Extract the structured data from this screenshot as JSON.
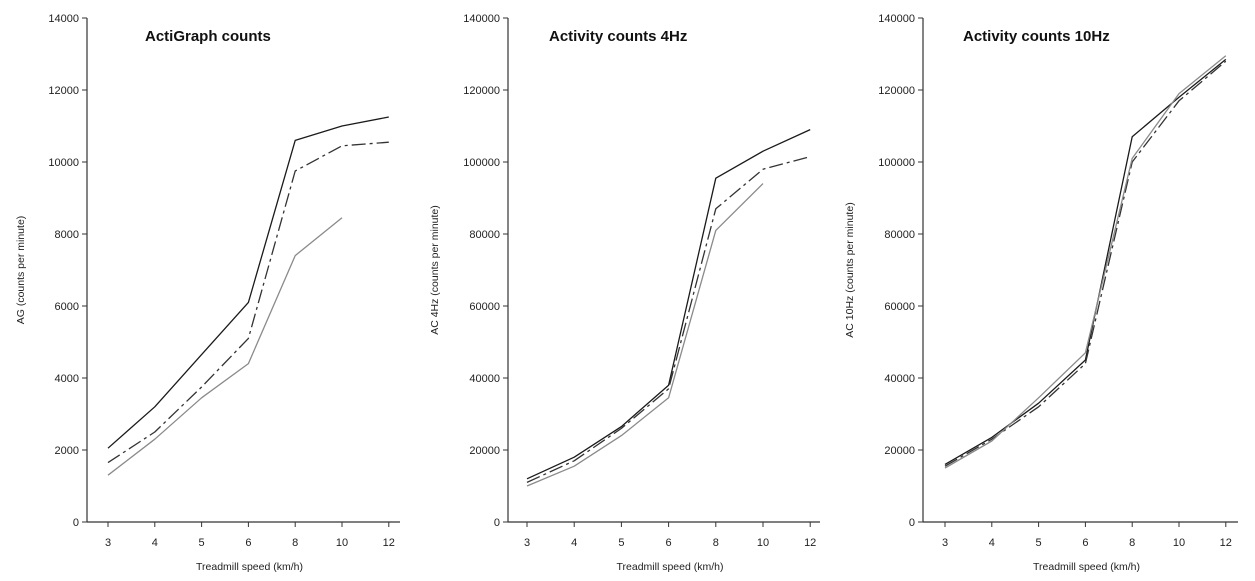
{
  "chart_data": [
    {
      "type": "line",
      "title": "ActiGraph counts",
      "xlabel": "Treadmill speed (km/h)",
      "ylabel": "AG (counts per minute)",
      "ylim": [
        0,
        14000
      ],
      "yticks": [
        0,
        2000,
        4000,
        6000,
        8000,
        10000,
        12000,
        14000
      ],
      "xticks": [
        3,
        4,
        5,
        6,
        8,
        10,
        12
      ],
      "grid": false,
      "legend": "none",
      "series": [
        {
          "style": "solid",
          "color": "#1a1a1a",
          "x": [
            3,
            4,
            5,
            6,
            8,
            10,
            12
          ],
          "y": [
            2050,
            3200,
            4650,
            6100,
            10600,
            11000,
            11250
          ]
        },
        {
          "style": "dashed",
          "color": "#333333",
          "x": [
            3,
            4,
            5,
            6,
            8,
            10,
            12
          ],
          "y": [
            1650,
            2500,
            3750,
            5100,
            9750,
            10450,
            10550
          ]
        },
        {
          "style": "solid",
          "color": "#8a8a8a",
          "x": [
            3,
            4,
            5,
            6,
            8,
            10
          ],
          "y": [
            1300,
            2300,
            3450,
            4400,
            7400,
            8450
          ]
        }
      ]
    },
    {
      "type": "line",
      "title": "Activity counts 4Hz",
      "xlabel": "Treadmill speed (km/h)",
      "ylabel": "AC 4Hz (counts per minute)",
      "ylim": [
        0,
        140000
      ],
      "yticks": [
        0,
        20000,
        40000,
        60000,
        80000,
        100000,
        120000,
        140000
      ],
      "xticks": [
        3,
        4,
        5,
        6,
        8,
        10,
        12
      ],
      "grid": false,
      "legend": "none",
      "series": [
        {
          "style": "solid",
          "color": "#1a1a1a",
          "x": [
            3,
            4,
            5,
            6,
            8,
            10,
            12
          ],
          "y": [
            12000,
            18000,
            26500,
            38000,
            95500,
            103000,
            109000
          ]
        },
        {
          "style": "dashed",
          "color": "#333333",
          "x": [
            3,
            4,
            5,
            6,
            8,
            10,
            12
          ],
          "y": [
            11000,
            17000,
            26000,
            37000,
            87000,
            98000,
            101500
          ]
        },
        {
          "style": "solid",
          "color": "#8a8a8a",
          "x": [
            3,
            4,
            5,
            6,
            8,
            10
          ],
          "y": [
            10000,
            15500,
            24000,
            34500,
            81000,
            94000
          ]
        }
      ]
    },
    {
      "type": "line",
      "title": "Activity counts 10Hz",
      "xlabel": "Treadmill speed (km/h)",
      "ylabel": "AC 10Hz (counts per minute)",
      "ylim": [
        0,
        140000
      ],
      "yticks": [
        0,
        20000,
        40000,
        60000,
        80000,
        100000,
        120000,
        140000
      ],
      "xticks": [
        3,
        4,
        5,
        6,
        8,
        10,
        12
      ],
      "grid": false,
      "legend": "none",
      "series": [
        {
          "style": "solid",
          "color": "#1a1a1a",
          "x": [
            3,
            4,
            5,
            6,
            8,
            10,
            12
          ],
          "y": [
            16000,
            23500,
            33000,
            45000,
            107000,
            118000,
            128500
          ]
        },
        {
          "style": "dashed",
          "color": "#333333",
          "x": [
            3,
            4,
            5,
            6,
            8,
            10,
            12
          ],
          "y": [
            15500,
            23000,
            32000,
            44000,
            100000,
            117000,
            128000
          ]
        },
        {
          "style": "solid",
          "color": "#8a8a8a",
          "x": [
            3,
            4,
            5,
            6,
            8,
            10,
            12
          ],
          "y": [
            15000,
            22500,
            34500,
            47000,
            101000,
            119000,
            129500
          ]
        }
      ]
    }
  ]
}
